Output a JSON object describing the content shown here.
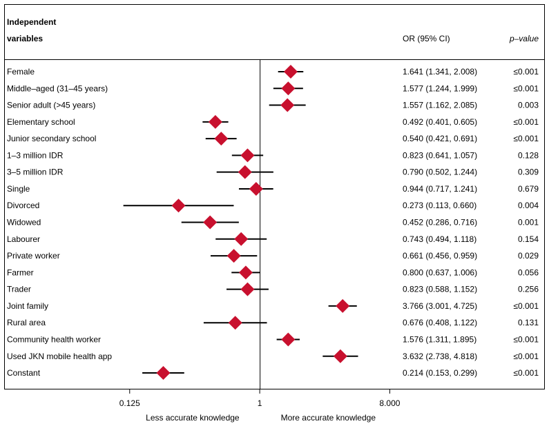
{
  "chart_data": {
    "type": "forest",
    "header": {
      "line1": "Independent",
      "line2": "variables",
      "or_col": "OR (95% CI)",
      "p_col": "p–value"
    },
    "scale": "log2",
    "xlim": [
      0.0625,
      9.5
    ],
    "ticks": [
      {
        "value": 0.125,
        "label": "0.125"
      },
      {
        "value": 1,
        "label": "1"
      },
      {
        "value": 8,
        "label": "8.000"
      }
    ],
    "reference_value": 1,
    "xlabel_left": "Less accurate knowledge",
    "xlabel_right": "More accurate knowledge",
    "marker_color": "#c8102e",
    "rows": [
      {
        "label": "Female",
        "or": 1.641,
        "lo": 1.341,
        "hi": 2.008,
        "ci_text": "1.641 (1.341, 2.008)",
        "p": "≤0.001"
      },
      {
        "label": "Middle–aged (31–45 years)",
        "or": 1.577,
        "lo": 1.244,
        "hi": 1.999,
        "ci_text": "1.577 (1.244, 1.999)",
        "p": "≤0.001"
      },
      {
        "label": "Senior adult (>45 years)",
        "or": 1.557,
        "lo": 1.162,
        "hi": 2.085,
        "ci_text": "1.557 (1.162, 2.085)",
        "p": "0.003"
      },
      {
        "label": "Elementary school",
        "or": 0.492,
        "lo": 0.401,
        "hi": 0.605,
        "ci_text": "0.492 (0.401, 0.605)",
        "p": "≤0.001"
      },
      {
        "label": "Junior secondary school",
        "or": 0.54,
        "lo": 0.421,
        "hi": 0.691,
        "ci_text": "0.540 (0.421, 0.691)",
        "p": "≤0.001"
      },
      {
        "label": "1–3 million IDR",
        "or": 0.823,
        "lo": 0.641,
        "hi": 1.057,
        "ci_text": "0.823 (0.641, 1.057)",
        "p": "0.128"
      },
      {
        "label": "3–5 million IDR",
        "or": 0.79,
        "lo": 0.502,
        "hi": 1.244,
        "ci_text": "0.790 (0.502, 1.244)",
        "p": "0.309"
      },
      {
        "label": "Single",
        "or": 0.944,
        "lo": 0.717,
        "hi": 1.241,
        "ci_text": "0.944 (0.717, 1.241)",
        "p": "0.679"
      },
      {
        "label": "Divorced",
        "or": 0.273,
        "lo": 0.113,
        "hi": 0.66,
        "ci_text": "0.273 (0.113, 0.660)",
        "p": "0.004"
      },
      {
        "label": "Widowed",
        "or": 0.452,
        "lo": 0.286,
        "hi": 0.716,
        "ci_text": "0.452 (0.286, 0.716)",
        "p": "0.001"
      },
      {
        "label": "Labourer",
        "or": 0.743,
        "lo": 0.494,
        "hi": 1.118,
        "ci_text": "0.743 (0.494, 1.118)",
        "p": "0.154"
      },
      {
        "label": "Private worker",
        "or": 0.661,
        "lo": 0.456,
        "hi": 0.959,
        "ci_text": "0.661 (0.456, 0.959)",
        "p": "0.029"
      },
      {
        "label": "Farmer",
        "or": 0.8,
        "lo": 0.637,
        "hi": 1.006,
        "ci_text": "0.800 (0.637, 1.006)",
        "p": "0.056"
      },
      {
        "label": "Trader",
        "or": 0.823,
        "lo": 0.588,
        "hi": 1.152,
        "ci_text": "0.823 (0.588, 1.152)",
        "p": "0.256"
      },
      {
        "label": "Joint family",
        "or": 3.766,
        "lo": 3.001,
        "hi": 4.725,
        "ci_text": "3.766 (3.001, 4.725)",
        "p": "≤0.001"
      },
      {
        "label": "Rural area",
        "or": 0.676,
        "lo": 0.408,
        "hi": 1.122,
        "ci_text": "0.676 (0.408, 1.122)",
        "p": "0.131"
      },
      {
        "label": "Community health worker",
        "or": 1.576,
        "lo": 1.311,
        "hi": 1.895,
        "ci_text": "1.576 (1.311, 1.895)",
        "p": "≤0.001"
      },
      {
        "label": "Used JKN mobile health app",
        "or": 3.632,
        "lo": 2.738,
        "hi": 4.818,
        "ci_text": "3.632 (2.738, 4.818)",
        "p": "≤0.001"
      },
      {
        "label": "Constant",
        "or": 0.214,
        "lo": 0.153,
        "hi": 0.299,
        "ci_text": "0.214 (0.153, 0.299)",
        "p": "≤0.001"
      }
    ]
  }
}
